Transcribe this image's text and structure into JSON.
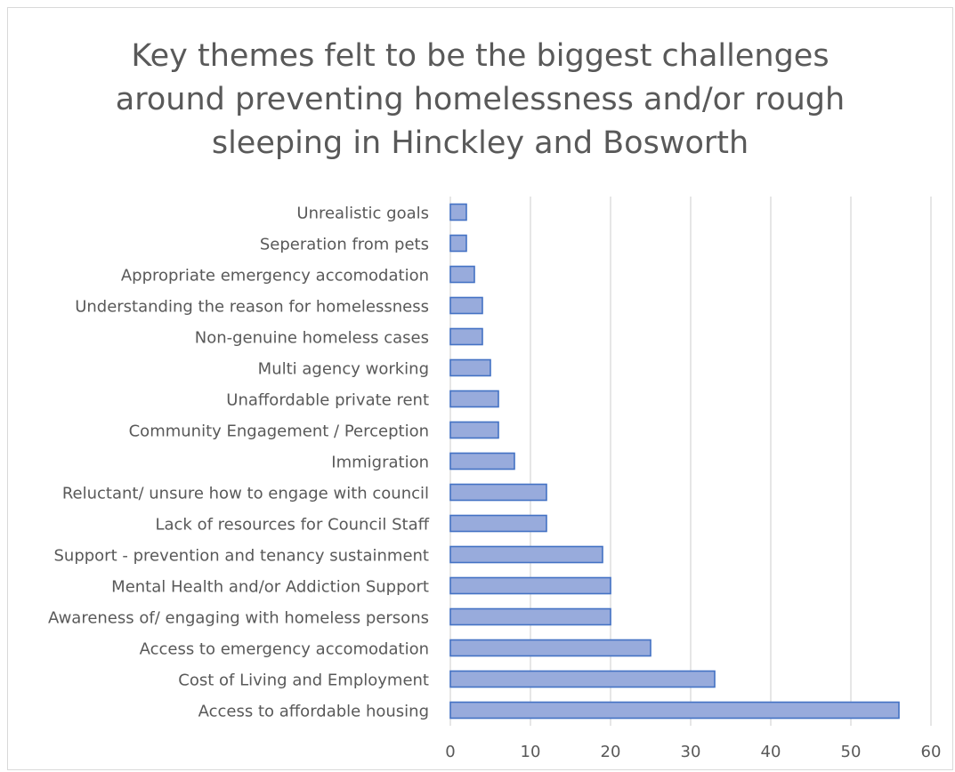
{
  "chart_data": {
    "type": "bar",
    "orientation": "horizontal",
    "title_lines": [
      "Key themes felt to be the biggest challenges",
      "around preventing homelessness and/or rough",
      "sleeping in Hinckley and Bosworth"
    ],
    "title": "Key themes felt to be the biggest challenges around preventing homelessness and/or rough sleeping in Hinckley and Bosworth",
    "categories": [
      "Access to affordable housing",
      "Cost of Living and Employment",
      "Access to emergency accomodation",
      "Awareness of/ engaging with homeless persons",
      "Mental Health and/or Addiction Support",
      "Support - prevention and tenancy sustainment",
      "Lack of resources for Council Staff",
      "Reluctant/ unsure how to engage with council",
      "Immigration",
      "Community Engagement / Perception",
      "Unaffordable private rent",
      "Multi agency working",
      "Non-genuine homeless cases",
      "Understanding the reason for homelessness",
      "Appropriate emergency accomodation",
      "Seperation from pets",
      "Unrealistic goals"
    ],
    "values": [
      56,
      33,
      25,
      20,
      20,
      19,
      12,
      12,
      8,
      6,
      6,
      5,
      4,
      4,
      3,
      2,
      2
    ],
    "xlim": [
      0,
      60
    ],
    "ticks": [
      "0",
      "10",
      "20",
      "30",
      "40",
      "50",
      "60"
    ],
    "xlabel": "",
    "ylabel": "",
    "grid": true,
    "legend": "none",
    "colors": {
      "bar_fill": "#98abdc",
      "bar_stroke": "#4472c4",
      "grid": "#d9d9d9",
      "text": "#595959"
    }
  }
}
